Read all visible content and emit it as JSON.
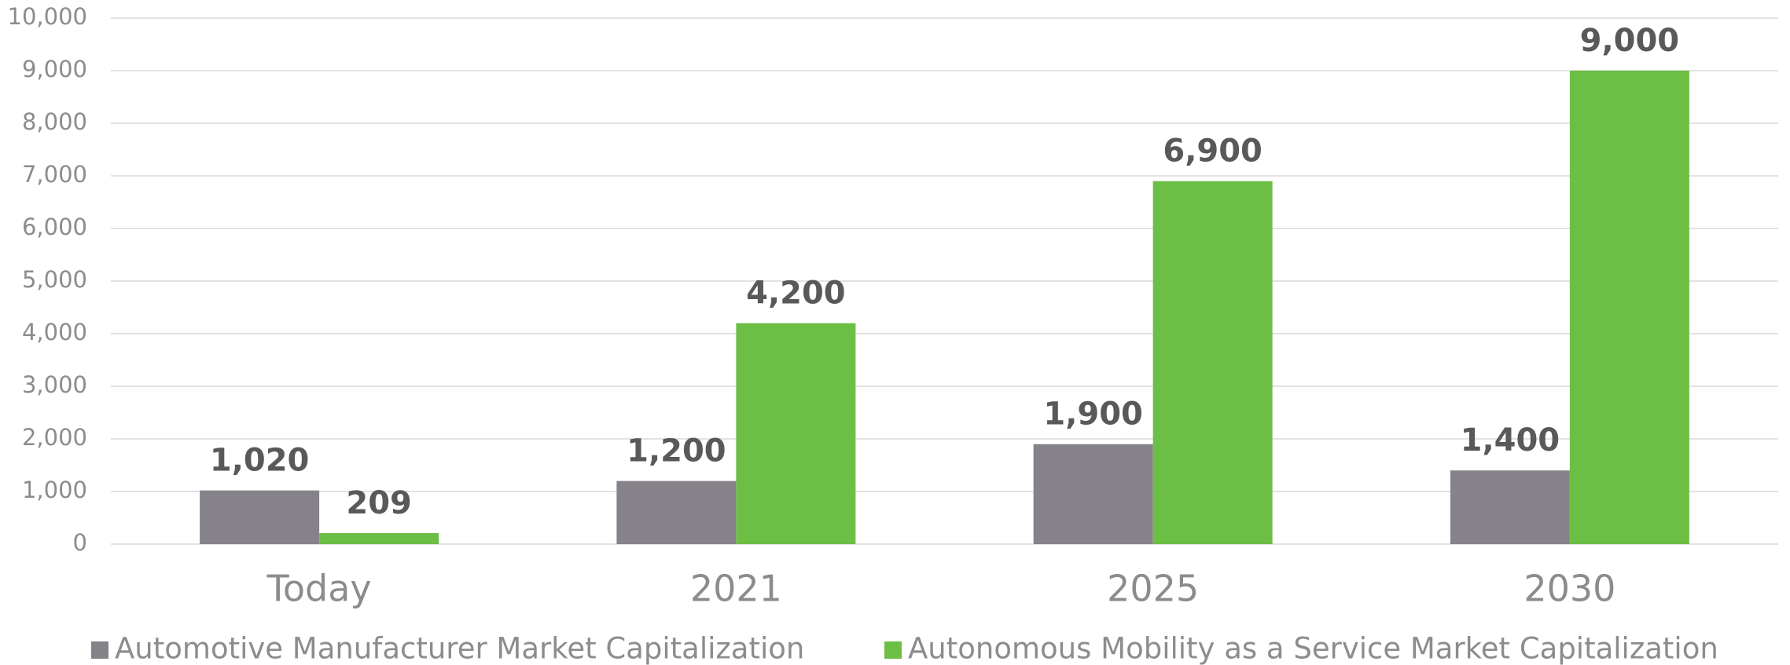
{
  "chart_data": {
    "type": "bar",
    "categories": [
      "Today",
      "2021",
      "2025",
      "2030"
    ],
    "series": [
      {
        "name": "Automotive Manufacturer Market Capitalization",
        "color": "#868289",
        "values": [
          1020,
          1200,
          1900,
          1400
        ],
        "value_labels": [
          "1,020",
          "1,200",
          "1,900",
          "1,400"
        ]
      },
      {
        "name": "Autonomous Mobility as a Service Market Capitalization",
        "color": "#6dbe45",
        "values": [
          209,
          4200,
          6900,
          9000
        ],
        "value_labels": [
          "209",
          "4,200",
          "6,900",
          "9,000"
        ]
      }
    ],
    "ylim": [
      0,
      10000
    ],
    "yticks": [
      0,
      {
        "value": 1000,
        "label": "1,000"
      },
      {
        "value": 2000,
        "label": "2,000"
      },
      {
        "value": 3000,
        "label": "3,000"
      },
      {
        "value": 4000,
        "label": "4,000"
      },
      {
        "value": 5000,
        "label": "5,000"
      },
      {
        "value": 6000,
        "label": "6,000"
      },
      {
        "value": 7000,
        "label": "7,000"
      },
      {
        "value": 8000,
        "label": "8,000"
      },
      {
        "value": 9000,
        "label": "9,000"
      },
      {
        "value": 10000,
        "label": "10,000"
      }
    ],
    "grid": true,
    "legend": "bottom"
  }
}
